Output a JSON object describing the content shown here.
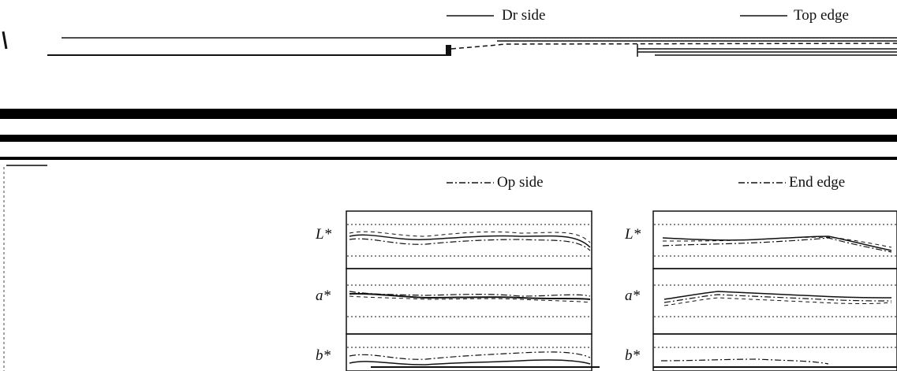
{
  "legend": {
    "dr_side": "Dr side",
    "op_side": "Op side",
    "top_edge": "Top edge",
    "end_edge": "End edge"
  },
  "panels": {
    "left": {
      "rows": [
        {
          "label": "L*"
        },
        {
          "label": "a*"
        },
        {
          "label": "b*"
        }
      ]
    },
    "right": {
      "rows": [
        {
          "label": "L*"
        },
        {
          "label": "a*"
        },
        {
          "label": "b*"
        }
      ]
    }
  },
  "colors": {
    "ink": "#111111",
    "paper": "#ffffff"
  }
}
